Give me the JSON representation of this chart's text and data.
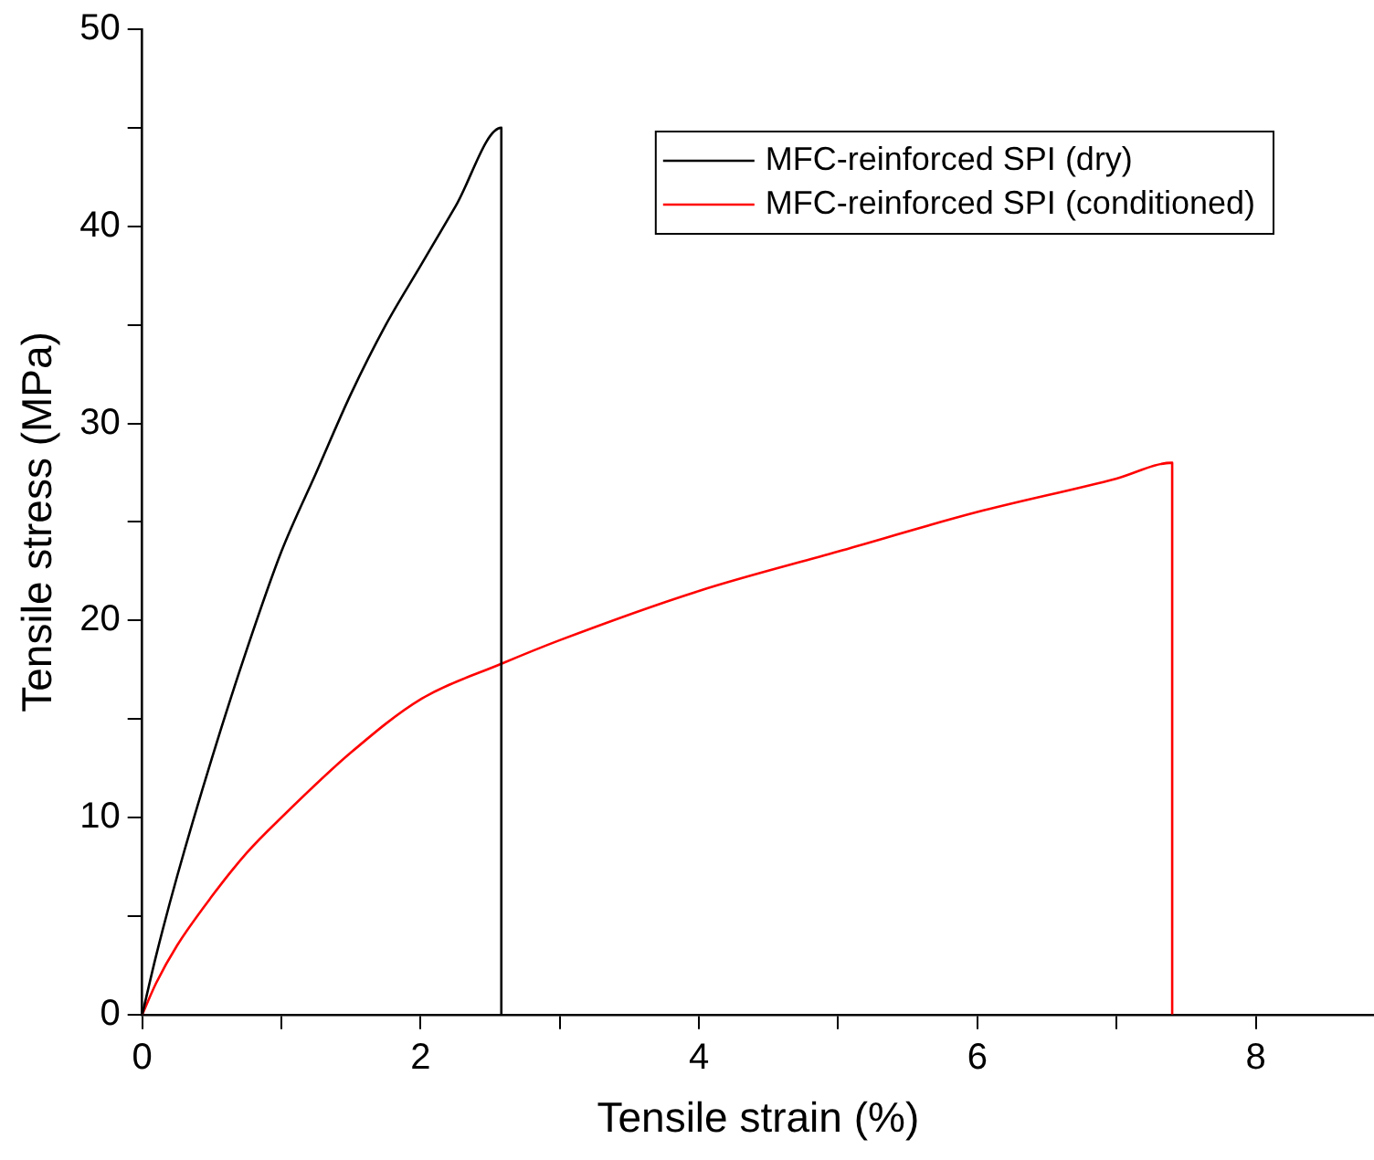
{
  "chart_data": {
    "type": "line",
    "xlabel": "Tensile strain (%)",
    "ylabel": "Tensile stress (MPa)",
    "xlim": [
      0,
      8.85
    ],
    "xticks": [
      0,
      {
        "value": 1,
        "label": null
      },
      2,
      {
        "value": 3,
        "label": null
      },
      4,
      {
        "value": 5,
        "label": null
      },
      6,
      {
        "value": 7,
        "label": null
      },
      8
    ],
    "ylim": [
      0,
      50
    ],
    "yticks": [
      0,
      {
        "value": 5,
        "label": null
      },
      10,
      {
        "value": 15,
        "label": null
      },
      20,
      {
        "value": 25,
        "label": null
      },
      30,
      {
        "value": 35,
        "label": null
      },
      40,
      {
        "value": 45,
        "label": null
      },
      50
    ],
    "grid": false,
    "legend": "top right",
    "marker": "none",
    "line_style": "solid",
    "series": [
      {
        "name": "MFC-reinforced SPI (dry)",
        "color": "#000000",
        "x": [
          0,
          0.1,
          0.25,
          0.5,
          0.75,
          1,
          1.25,
          1.5,
          1.75,
          2,
          2.25,
          2.58,
          2.58
        ],
        "values": [
          0,
          3,
          7,
          13,
          18.5,
          23.5,
          27.5,
          31.5,
          35,
          38,
          41,
          45,
          0
        ]
      },
      {
        "name": "MFC-reinforced SPI (conditioned)",
        "color": "#ff0000",
        "x": [
          0,
          0.1,
          0.25,
          0.5,
          0.75,
          1,
          1.5,
          2,
          2.58,
          3,
          4,
          5,
          6,
          7,
          7.4,
          7.4
        ],
        "values": [
          0,
          1.6,
          3.5,
          6,
          8.2,
          10,
          13.3,
          16,
          17.8,
          19,
          21.5,
          23.5,
          25.5,
          27.2,
          28,
          0
        ]
      }
    ]
  }
}
